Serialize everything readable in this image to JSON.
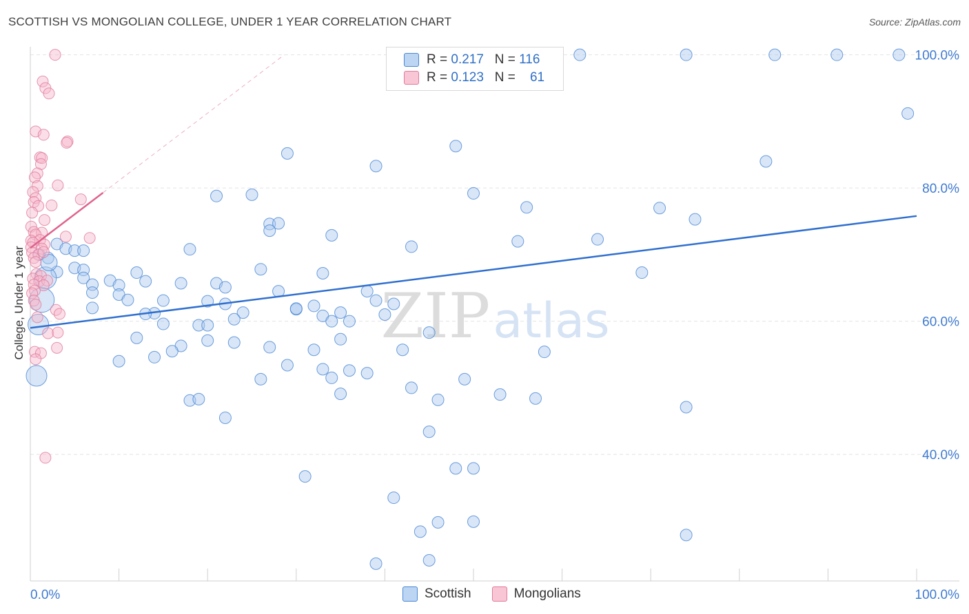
{
  "title": "SCOTTISH VS MONGOLIAN COLLEGE, UNDER 1 YEAR CORRELATION CHART",
  "source": "Source: ZipAtlas.com",
  "watermark": {
    "zip": "ZIP",
    "atlas": "atlas"
  },
  "colors": {
    "scottish_fill": "#a9c8ee",
    "scottish_stroke": "#4a86d4",
    "scottish_line": "#2f6fcf",
    "mongolian_fill": "#f7b8cb",
    "mongolian_stroke": "#e07a9a",
    "mongolian_line": "#e0628c",
    "tick_label": "#3f7bd0"
  },
  "legend": {
    "rows": [
      {
        "r_label": "R = ",
        "r_value": "0.217",
        "n_label": "N = ",
        "n_value": "116"
      },
      {
        "r_label": "R = ",
        "r_value": "0.123",
        "n_label": "N = ",
        "n_value": "61"
      }
    ]
  },
  "bottom_legend": [
    "Scottish",
    "Mongolians"
  ],
  "chart_data": {
    "type": "scatter",
    "title": "SCOTTISH VS MONGOLIAN COLLEGE, UNDER 1 YEAR CORRELATION CHART",
    "xlabel": "",
    "ylabel": "College, Under 1 year",
    "xlim": [
      0,
      100
    ],
    "ylim": [
      21,
      101
    ],
    "x_tick_labels": [
      "0.0%",
      "100.0%"
    ],
    "y_ticks": [
      40,
      60,
      80,
      100
    ],
    "y_tick_labels": [
      "40.0%",
      "60.0%",
      "80.0%",
      "100.0%"
    ],
    "grid": true,
    "legend_position": "top-center",
    "series": [
      {
        "name": "Scottish",
        "R": 0.217,
        "N": 116,
        "trend": {
          "x": [
            0,
            100
          ],
          "y": [
            59.0,
            75.8
          ]
        },
        "points": [
          [
            41,
            100
          ],
          [
            48,
            100
          ],
          [
            52,
            100
          ],
          [
            57,
            100
          ],
          [
            59,
            100
          ],
          [
            62,
            100
          ],
          [
            74,
            100
          ],
          [
            84,
            100
          ],
          [
            91,
            100
          ],
          [
            98,
            100
          ],
          [
            99,
            91.2
          ],
          [
            83,
            84
          ],
          [
            48,
            86.3
          ],
          [
            29,
            85.2
          ],
          [
            39,
            83.3
          ],
          [
            50,
            79.2
          ],
          [
            25,
            79
          ],
          [
            21,
            78.8
          ],
          [
            56,
            77.1
          ],
          [
            71,
            77
          ],
          [
            75,
            75.3
          ],
          [
            27,
            74.6
          ],
          [
            28,
            74.7
          ],
          [
            27,
            73.6
          ],
          [
            34,
            72.9
          ],
          [
            55,
            72
          ],
          [
            64,
            72.3
          ],
          [
            43,
            71.2
          ],
          [
            3,
            71.6
          ],
          [
            4,
            70.9
          ],
          [
            5,
            70.6
          ],
          [
            6,
            70.6
          ],
          [
            2,
            69.5
          ],
          [
            18,
            70.8
          ],
          [
            1,
            70
          ],
          [
            5,
            68
          ],
          [
            6,
            67.7
          ],
          [
            3,
            67.4
          ],
          [
            12,
            67.3
          ],
          [
            26,
            67.8
          ],
          [
            33,
            67.2
          ],
          [
            69,
            67.3
          ],
          [
            6,
            66.5
          ],
          [
            9,
            66.1
          ],
          [
            13,
            66
          ],
          [
            17,
            65.7
          ],
          [
            7,
            65.5
          ],
          [
            10,
            65.4
          ],
          [
            21,
            65.7
          ],
          [
            22,
            65.1
          ],
          [
            7,
            64.3
          ],
          [
            28,
            64.5
          ],
          [
            38,
            64.5
          ],
          [
            10,
            64
          ],
          [
            11,
            63.2
          ],
          [
            15,
            63.1
          ],
          [
            20,
            63
          ],
          [
            22,
            62.6
          ],
          [
            39,
            63.1
          ],
          [
            41,
            62.6
          ],
          [
            32,
            62.3
          ],
          [
            7,
            62
          ],
          [
            14,
            61.2
          ],
          [
            24,
            61.3
          ],
          [
            30,
            61.8
          ],
          [
            13,
            61.1
          ],
          [
            30,
            61.9
          ],
          [
            35,
            61.3
          ],
          [
            33,
            60.8
          ],
          [
            40,
            61
          ],
          [
            34,
            60
          ],
          [
            36,
            60
          ],
          [
            15,
            59.6
          ],
          [
            19,
            59.4
          ],
          [
            20,
            59.4
          ],
          [
            23,
            60.3
          ],
          [
            45,
            58.3
          ],
          [
            12,
            57.5
          ],
          [
            20,
            57.1
          ],
          [
            23,
            56.8
          ],
          [
            35,
            57.3
          ],
          [
            17,
            56.3
          ],
          [
            16,
            55.5
          ],
          [
            27,
            56.1
          ],
          [
            32,
            55.7
          ],
          [
            42,
            55.7
          ],
          [
            58,
            55.4
          ],
          [
            10,
            54
          ],
          [
            14,
            54.6
          ],
          [
            29,
            53.4
          ],
          [
            33,
            52.8
          ],
          [
            36,
            52.6
          ],
          [
            34,
            51.5
          ],
          [
            26,
            51.3
          ],
          [
            38,
            52.2
          ],
          [
            49,
            51.3
          ],
          [
            43,
            50
          ],
          [
            46,
            48.2
          ],
          [
            53,
            49
          ],
          [
            57,
            48.4
          ],
          [
            35,
            49.1
          ],
          [
            18,
            48.1
          ],
          [
            19,
            48.3
          ],
          [
            74,
            47.1
          ],
          [
            22,
            45.5
          ],
          [
            45,
            43.4
          ],
          [
            31,
            36.7
          ],
          [
            48,
            37.9
          ],
          [
            50,
            37.9
          ],
          [
            41,
            33.5
          ],
          [
            46,
            29.8
          ],
          [
            50,
            29.9
          ],
          [
            44,
            28.4
          ],
          [
            74,
            27.9
          ],
          [
            39,
            23.6
          ],
          [
            45,
            24.1
          ]
        ]
      },
      {
        "name": "Mongolians",
        "R": 0.123,
        "N": 61,
        "trend": {
          "x": [
            0,
            8.2
          ],
          "y": [
            71.0,
            79.3
          ]
        },
        "points": [
          [
            2.8,
            100
          ],
          [
            1.4,
            96
          ],
          [
            1.7,
            95
          ],
          [
            2.1,
            94.2
          ],
          [
            0.6,
            88.5
          ],
          [
            1.5,
            88
          ],
          [
            4.2,
            87
          ],
          [
            4.1,
            86.8
          ],
          [
            1.1,
            84.6
          ],
          [
            1.3,
            84.5
          ],
          [
            1.2,
            83.6
          ],
          [
            0.8,
            82.2
          ],
          [
            0.5,
            81.6
          ],
          [
            3.1,
            80.4
          ],
          [
            0.8,
            80.3
          ],
          [
            0.3,
            79.4
          ],
          [
            0.6,
            78.5
          ],
          [
            5.7,
            78.3
          ],
          [
            0.4,
            77.9
          ],
          [
            0.9,
            77.3
          ],
          [
            2.4,
            77.4
          ],
          [
            0.2,
            76.3
          ],
          [
            1.6,
            75.2
          ],
          [
            0.1,
            74.2
          ],
          [
            0.4,
            73.4
          ],
          [
            1.3,
            73.3
          ],
          [
            0.6,
            73
          ],
          [
            4,
            72.7
          ],
          [
            6.7,
            72.5
          ],
          [
            0.1,
            72.1
          ],
          [
            1.1,
            72.2
          ],
          [
            1.6,
            71.5
          ],
          [
            0.3,
            71.8
          ],
          [
            0.1,
            71.1
          ],
          [
            1.3,
            70.9
          ],
          [
            0.2,
            70.3
          ],
          [
            0.9,
            70
          ],
          [
            1.5,
            70.4
          ],
          [
            0.4,
            69.5
          ],
          [
            0.6,
            68.9
          ],
          [
            0.7,
            67.1
          ],
          [
            1.2,
            66.8
          ],
          [
            0.3,
            66.4
          ],
          [
            1,
            66
          ],
          [
            1.9,
            66.1
          ],
          [
            0.4,
            65.5
          ],
          [
            1.5,
            65.4
          ],
          [
            0.5,
            64.6
          ],
          [
            0.2,
            64.2
          ],
          [
            0.4,
            63.1
          ],
          [
            0.6,
            62.5
          ],
          [
            2.9,
            61.7
          ],
          [
            3.3,
            61.1
          ],
          [
            0.8,
            60.6
          ],
          [
            2,
            58.2
          ],
          [
            3.1,
            58.3
          ],
          [
            3,
            56
          ],
          [
            0.5,
            55.4
          ],
          [
            1.2,
            55.2
          ],
          [
            0.6,
            54.3
          ],
          [
            1.7,
            39.5
          ]
        ]
      }
    ]
  }
}
